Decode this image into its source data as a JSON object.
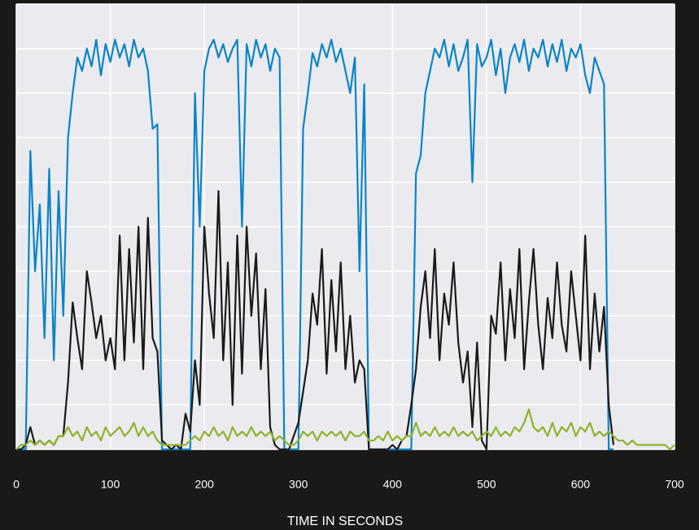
{
  "chart_data": {
    "type": "line",
    "x_label": "TIME IN SECONDS",
    "x": [
      0,
      5,
      10,
      15,
      20,
      25,
      30,
      35,
      40,
      45,
      50,
      55,
      60,
      65,
      70,
      75,
      80,
      85,
      90,
      95,
      100,
      105,
      110,
      115,
      120,
      125,
      130,
      135,
      140,
      145,
      150,
      155,
      160,
      165,
      170,
      175,
      180,
      185,
      190,
      195,
      200,
      205,
      210,
      215,
      220,
      225,
      230,
      235,
      240,
      245,
      250,
      255,
      260,
      265,
      270,
      275,
      280,
      285,
      290,
      295,
      300,
      305,
      310,
      315,
      320,
      325,
      330,
      335,
      340,
      345,
      350,
      355,
      360,
      365,
      370,
      375,
      380,
      385,
      390,
      395,
      400,
      405,
      410,
      415,
      420,
      425,
      430,
      435,
      440,
      445,
      450,
      455,
      460,
      465,
      470,
      475,
      480,
      485,
      490,
      495,
      500,
      505,
      510,
      515,
      520,
      525,
      530,
      535,
      540,
      545,
      550,
      555,
      560,
      565,
      570,
      575,
      580,
      585,
      590,
      595,
      600,
      605,
      610,
      615,
      620,
      625,
      630,
      635,
      640,
      645,
      650,
      655,
      660,
      665,
      670,
      675,
      680,
      685,
      690,
      695,
      700
    ],
    "series": [
      {
        "color": "#0a84c6",
        "values": [
          0,
          0,
          0,
          67,
          40,
          55,
          25,
          63,
          20,
          58,
          30,
          70,
          80,
          88,
          85,
          90,
          86,
          92,
          84,
          91,
          87,
          92,
          88,
          91,
          86,
          92,
          88,
          90,
          85,
          72,
          73,
          0,
          0,
          0,
          0,
          0,
          0,
          0,
          80,
          50,
          85,
          90,
          92,
          88,
          91,
          87,
          90,
          92,
          50,
          91,
          86,
          92,
          88,
          91,
          85,
          90,
          88,
          0,
          0,
          0,
          0,
          72,
          80,
          89,
          86,
          91,
          88,
          92,
          87,
          90,
          85,
          80,
          88,
          40,
          82,
          0,
          0,
          0,
          0,
          0,
          0,
          0,
          0,
          0,
          0,
          62,
          66,
          80,
          85,
          90,
          88,
          92,
          86,
          91,
          85,
          88,
          92,
          60,
          91,
          86,
          88,
          92,
          84,
          90,
          80,
          88,
          91,
          87,
          92,
          85,
          90,
          88,
          92,
          86,
          91,
          87,
          92,
          85,
          90,
          88,
          91,
          84,
          80,
          88,
          85,
          82,
          0,
          0,
          null,
          null,
          null,
          null,
          null,
          null,
          null,
          null,
          null,
          null,
          null,
          null,
          null
        ]
      },
      {
        "color": "#1a1a1a",
        "values": [
          0,
          0,
          1,
          5,
          1,
          2,
          1,
          2,
          1,
          3,
          3,
          15,
          33,
          25,
          18,
          40,
          33,
          25,
          30,
          20,
          25,
          18,
          48,
          20,
          45,
          24,
          50,
          18,
          52,
          25,
          22,
          2,
          1,
          0,
          1,
          0,
          8,
          4,
          20,
          10,
          50,
          35,
          25,
          58,
          20,
          42,
          10,
          48,
          17,
          50,
          30,
          44,
          18,
          36,
          5,
          1,
          0,
          0,
          0,
          3,
          6,
          13,
          20,
          35,
          28,
          45,
          17,
          38,
          22,
          42,
          18,
          30,
          15,
          20,
          18,
          0,
          0,
          0,
          0,
          0,
          1,
          0,
          2,
          3,
          10,
          18,
          32,
          40,
          25,
          45,
          20,
          35,
          28,
          42,
          24,
          15,
          22,
          5,
          24,
          2,
          0,
          30,
          26,
          42,
          20,
          36,
          25,
          45,
          18,
          33,
          45,
          28,
          18,
          34,
          25,
          42,
          28,
          22,
          40,
          30,
          20,
          48,
          18,
          35,
          22,
          32,
          10,
          1,
          null,
          null,
          null,
          null,
          null,
          null,
          null,
          null,
          null,
          null,
          null,
          null,
          null
        ]
      },
      {
        "color": "#8db32b",
        "values": [
          0,
          1,
          1,
          2,
          1,
          2,
          1,
          2,
          1,
          3,
          3,
          5,
          3,
          4,
          2,
          5,
          3,
          4,
          2,
          5,
          3,
          4,
          5,
          3,
          4,
          6,
          3,
          5,
          3,
          4,
          2,
          1,
          1,
          1,
          1,
          1,
          1,
          2,
          3,
          2,
          4,
          3,
          5,
          3,
          4,
          2,
          5,
          3,
          4,
          3,
          5,
          3,
          4,
          3,
          4,
          2,
          3,
          2,
          1,
          1,
          2,
          4,
          3,
          4,
          2,
          4,
          3,
          4,
          3,
          4,
          2,
          4,
          3,
          3,
          4,
          2,
          2,
          3,
          2,
          4,
          2,
          3,
          2,
          3,
          3,
          6,
          3,
          4,
          3,
          5,
          3,
          4,
          3,
          5,
          3,
          4,
          3,
          4,
          2,
          3,
          4,
          3,
          5,
          3,
          4,
          3,
          5,
          4,
          6,
          9,
          5,
          4,
          5,
          3,
          6,
          3,
          5,
          4,
          6,
          3,
          5,
          4,
          6,
          3,
          4,
          3,
          4,
          3,
          2,
          2,
          1,
          2,
          1,
          1,
          1,
          1,
          1,
          1,
          1,
          0,
          1
        ]
      }
    ],
    "xlim": [
      0,
      700
    ],
    "xticks": [
      0,
      100,
      200,
      300,
      400,
      500,
      600,
      700
    ],
    "ylim": [
      0,
      100
    ],
    "yticks": [
      0,
      10,
      20,
      30,
      40,
      50,
      60,
      70,
      80,
      90,
      100
    ],
    "grid": true
  }
}
